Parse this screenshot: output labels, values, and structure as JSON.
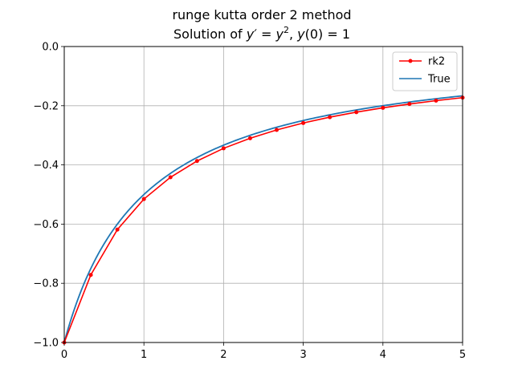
{
  "chart_data": {
    "type": "line",
    "title": "runge kutta order 2 method",
    "subtitle": {
      "prefix": "Solution of ",
      "y_prime": "y′",
      "eq": " = ",
      "y_sq_base": "y",
      "y_sq_exp": "2",
      "comma": ", ",
      "init_y": "y",
      "init_arg": "(0) = 1"
    },
    "xlabel": "",
    "ylabel": "",
    "xlim": [
      0,
      5
    ],
    "ylim": [
      -1.0,
      0.0
    ],
    "x_ticks": [
      0,
      1,
      2,
      3,
      4,
      5
    ],
    "x_tick_labels": [
      "0",
      "1",
      "2",
      "3",
      "4",
      "5"
    ],
    "y_ticks": [
      0.0,
      -0.2,
      -0.4,
      -0.6,
      -0.8,
      -1.0
    ],
    "y_tick_labels": [
      "0.0",
      "−0.2",
      "−0.4",
      "−0.6",
      "−0.8",
      "−1.0"
    ],
    "grid": true,
    "legend_position": "top-right",
    "series": [
      {
        "name": "rk2",
        "color": "#ff0000",
        "marker": "dot",
        "x": [
          0,
          0.3333,
          0.6667,
          1.0,
          1.3333,
          1.6667,
          2.0,
          2.3333,
          2.6667,
          3.0,
          3.3333,
          3.6667,
          4.0,
          4.3333,
          4.6667,
          5.0
        ],
        "y": [
          -1.0,
          -0.7716,
          -0.6185,
          -0.5154,
          -0.4418,
          -0.3868,
          -0.344,
          -0.3098,
          -0.2818,
          -0.2584,
          -0.2387,
          -0.2218,
          -0.2071,
          -0.1942,
          -0.1829,
          -0.1728
        ]
      },
      {
        "name": "True",
        "color": "#1f77b4",
        "marker": "none",
        "function": "-1/(1+x)"
      }
    ]
  }
}
